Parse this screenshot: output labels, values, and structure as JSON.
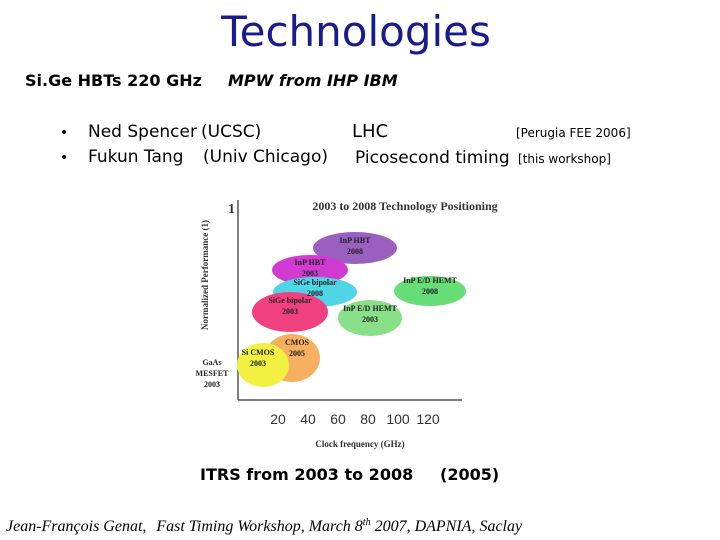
{
  "header": {
    "title": "Technologies"
  },
  "subtitle": {
    "left": "Si.Ge HBTs 220 GHz",
    "right": "MPW from IHP IBM"
  },
  "bullets": [
    {
      "person": "Ned Spencer",
      "affiliation": "(UCSC)"
    },
    {
      "person": "Fukun Tang",
      "affiliation": "(Univ Chicago)"
    }
  ],
  "applications": [
    {
      "label": "LHC",
      "reference": "[Perugia FEE 2006]"
    },
    {
      "label": "Picosecond timing",
      "reference": "[this workshop]"
    }
  ],
  "figure": {
    "title": "2003 to 2008 Technology Positioning",
    "y_label": "Normalized Performance (1)",
    "y_tick": 1,
    "x_ticks": [
      20,
      40,
      60,
      80,
      100,
      120
    ],
    "x_label": "Clock frequency (GHz)",
    "regions": [
      {
        "label": [
          "InP HBT",
          "2008"
        ]
      },
      {
        "label": [
          "InP HBT",
          "2003"
        ]
      },
      {
        "label": [
          "SiGe bipolar",
          "2008"
        ]
      },
      {
        "label": [
          "SiGe bipolar",
          "2003"
        ]
      },
      {
        "label": [
          "InP E/D HEMT",
          "2008"
        ]
      },
      {
        "label": [
          "InP E/D HEMT",
          "2003"
        ]
      },
      {
        "label": [
          "CMOS",
          "2005"
        ]
      },
      {
        "label": [
          "Si CMOS",
          "2003"
        ]
      },
      {
        "label": [
          "GaAs",
          "MESFET",
          "2003"
        ]
      }
    ],
    "caption": "ITRS from 2003 to 2008",
    "date": "(2005)"
  },
  "footer": {
    "author": "Jean-François  Genat,",
    "event": "Fast Timing Workshop, March 8",
    "superscript": "th",
    "rest": " 2007, DAPNIA, Saclay"
  }
}
